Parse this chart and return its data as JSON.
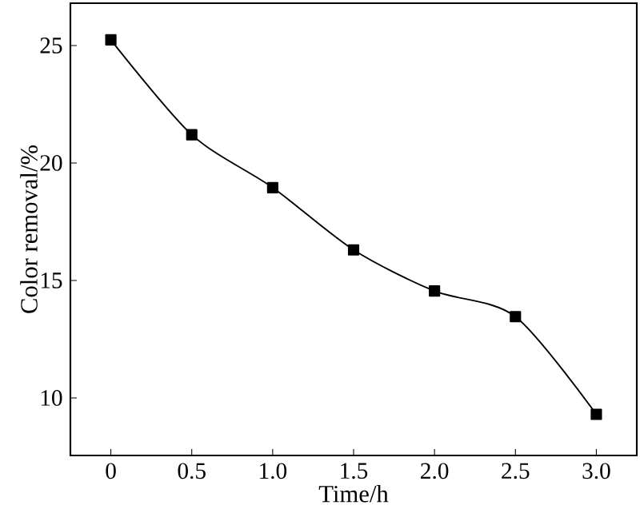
{
  "chart_data": {
    "type": "line",
    "xlabel": "Time/h",
    "ylabel": "Color removal/%",
    "x": [
      0,
      0.5,
      1.0,
      1.5,
      2.0,
      2.5,
      3.0
    ],
    "series": [
      {
        "color": "#000000",
        "values": [
          25.24,
          21.2,
          18.95,
          16.3,
          14.55,
          13.46,
          9.3
        ]
      }
    ],
    "xlim": [
      -0.25,
      3.25
    ],
    "ylim": [
      7.55,
      26.8
    ],
    "xticks": [
      0,
      {
        "value": 0.5,
        "label": "0.5"
      },
      {
        "value": 1,
        "label": "1.0"
      },
      {
        "value": 1.5,
        "label": "1.5"
      },
      {
        "value": 2,
        "label": "2.0"
      },
      {
        "value": 2.5,
        "label": "2.5"
      },
      {
        "value": 3,
        "label": "3.0"
      }
    ],
    "yticks": [
      10,
      15,
      20,
      25
    ],
    "marker": "square",
    "line_style": "solid"
  }
}
